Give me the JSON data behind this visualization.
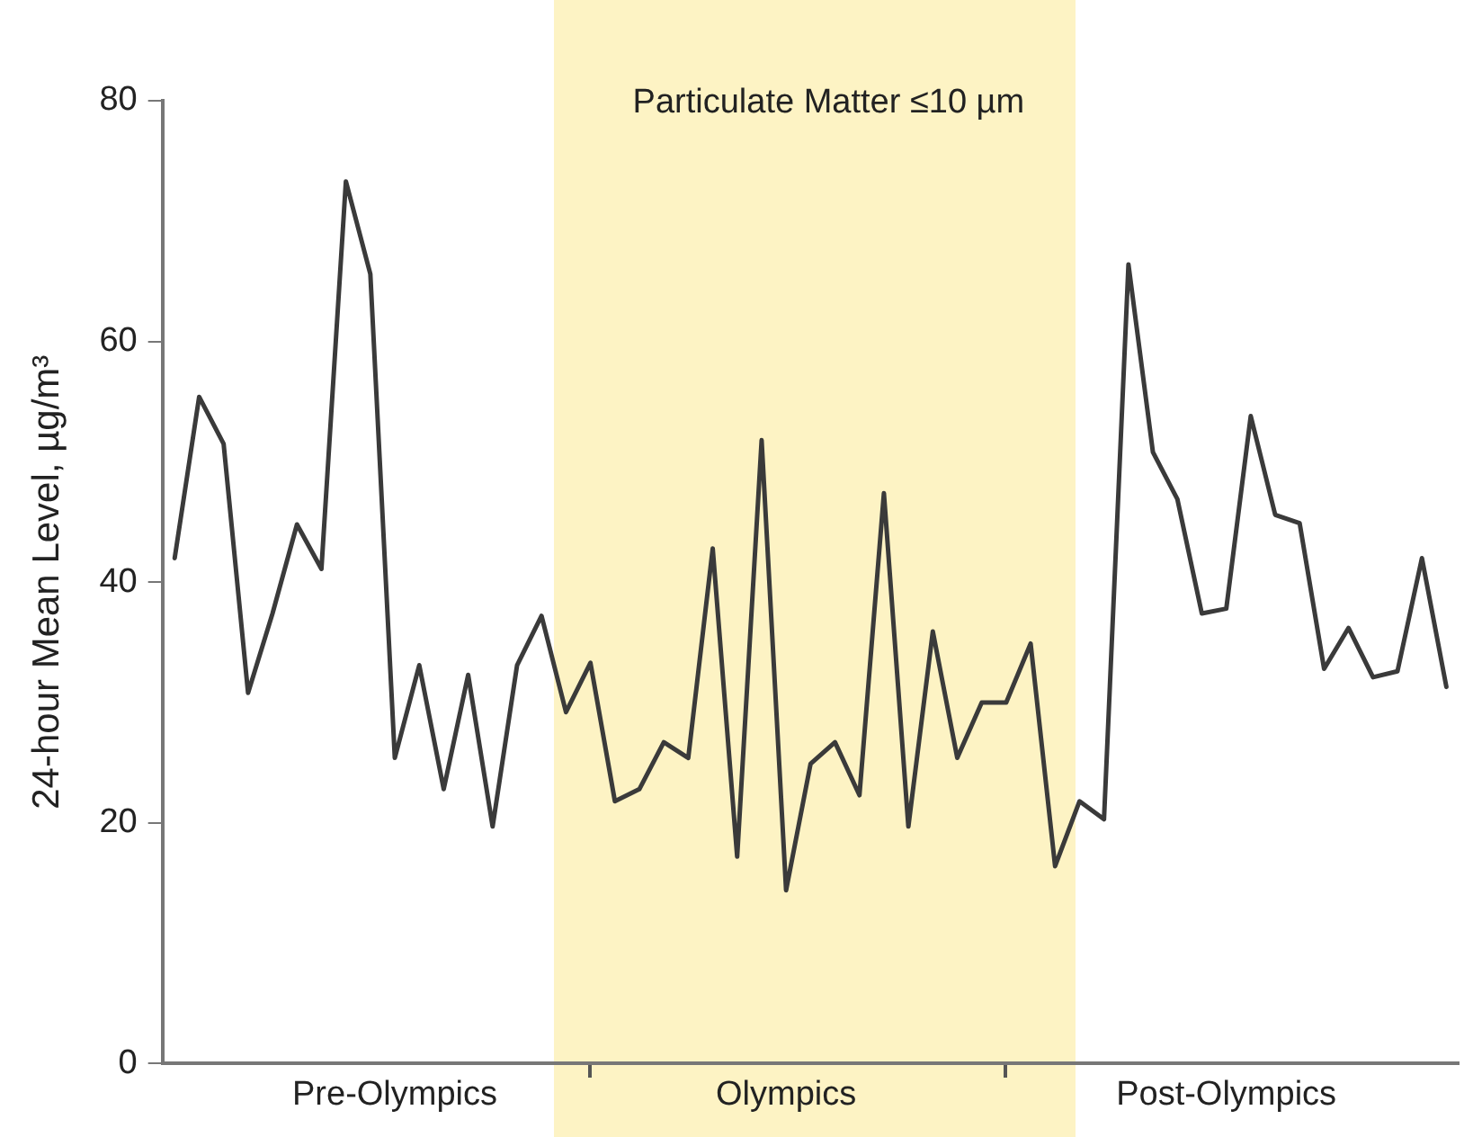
{
  "chart_data": {
    "type": "line",
    "title": "Particulate Matter ≤10 µm",
    "ylabel": "24-hour Mean Level, µg/m³",
    "categories": [
      null,
      null,
      null,
      null,
      null,
      null,
      null,
      null,
      null,
      "Pre-Olympics",
      null,
      null,
      null,
      null,
      null,
      null,
      null,
      null,
      null,
      null,
      null,
      null,
      null,
      null,
      null,
      "Olympics",
      null,
      null,
      null,
      null,
      null,
      null,
      null,
      null,
      null,
      null,
      null,
      null,
      null,
      null,
      null,
      null,
      null,
      "Post-Olympics",
      null,
      null,
      null,
      null,
      null,
      null,
      null,
      null,
      null
    ],
    "series": [
      {
        "color": "#3a3a3a",
        "values": [
          42.0,
          55.4,
          51.5,
          30.8,
          37.4,
          44.8,
          41.1,
          73.3,
          65.6,
          25.4,
          33.1,
          22.8,
          32.3,
          19.7,
          33.1,
          37.2,
          29.2,
          33.3,
          21.8,
          22.8,
          26.7,
          25.4,
          42.8,
          17.2,
          51.8,
          14.4,
          24.9,
          26.7,
          22.3,
          47.4,
          19.7,
          35.9,
          25.4,
          30.0,
          30.0,
          34.9,
          16.4,
          21.8,
          20.3,
          66.4,
          50.8,
          46.9,
          37.4,
          37.8,
          53.8,
          45.6,
          44.9,
          32.8,
          36.2,
          32.1,
          32.6,
          42.0,
          31.3
        ]
      }
    ],
    "ylim": [
      0,
      80
    ],
    "yticks": [
      0,
      20,
      40,
      60,
      80
    ],
    "grid": false,
    "legend": false,
    "marker": "none",
    "line_style": "solid"
  }
}
